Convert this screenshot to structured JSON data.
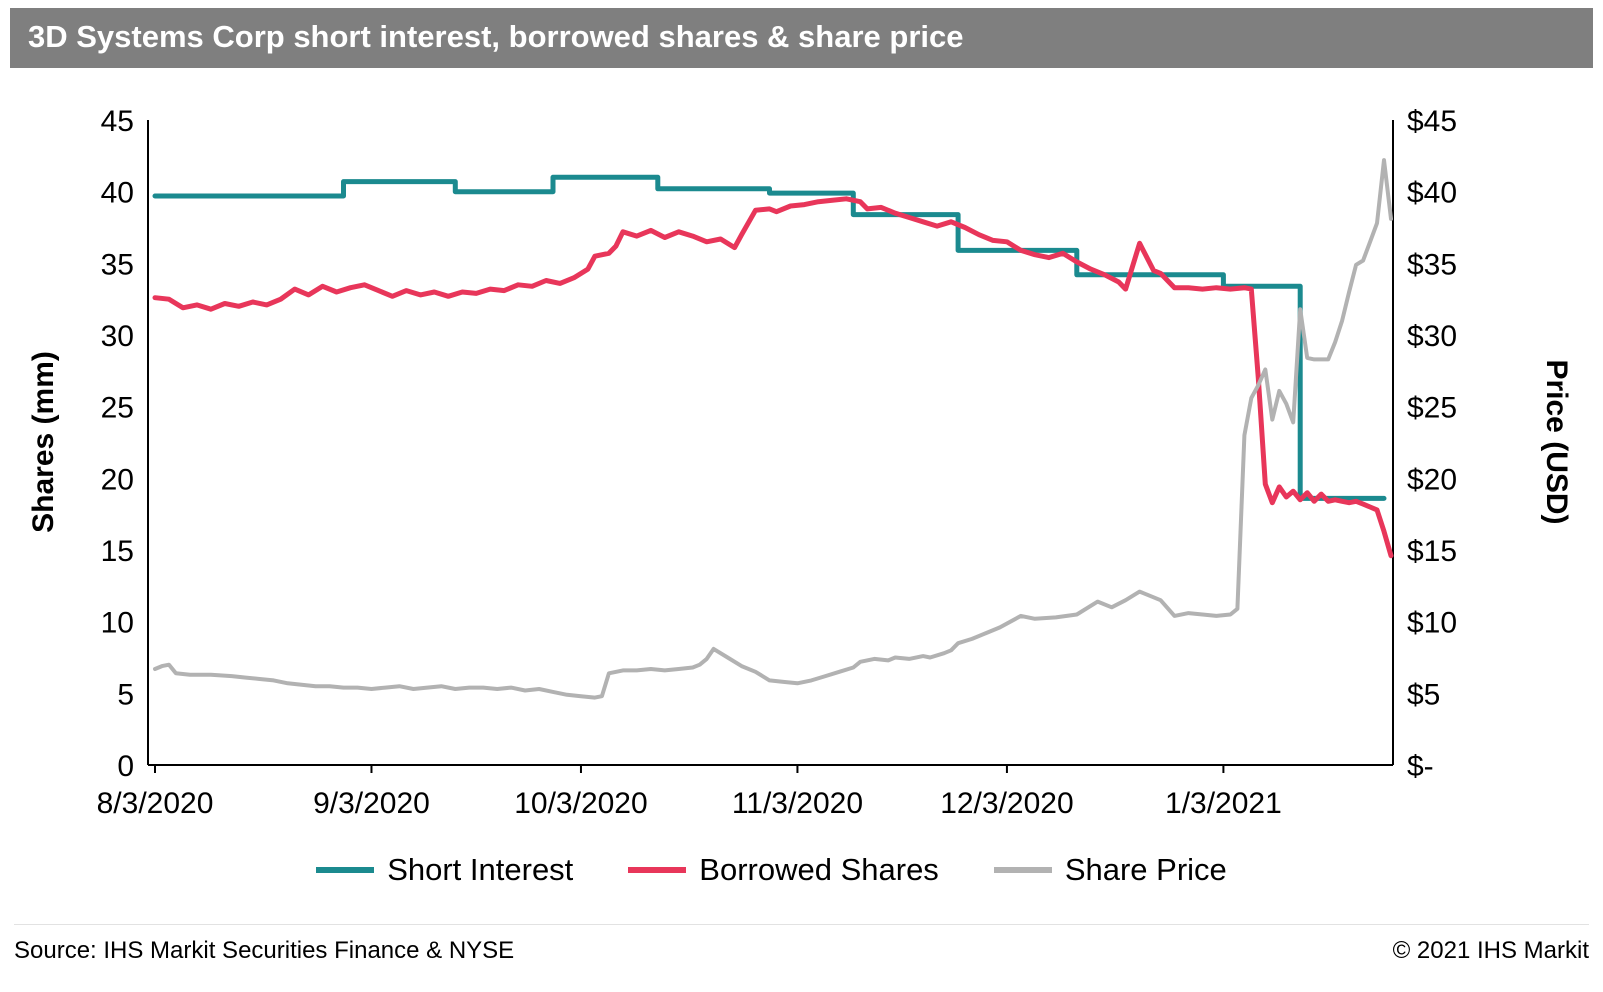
{
  "title": "3D Systems Corp short interest, borrowed shares & share price",
  "footer": {
    "source": "Source: IHS Markit Securities Finance & NYSE",
    "copyright": "© 2021 IHS Markit"
  },
  "colors": {
    "title_bar": "#7F7F7F",
    "axis": "#000000",
    "short_interest": "#1B8A8F",
    "borrowed_shares": "#E8365A",
    "share_price": "#B2B2B2"
  },
  "chart_data": {
    "type": "line",
    "title": "3D Systems Corp short interest, borrowed shares & share price",
    "x_unit": "calendar days since 8/3/2020",
    "x_domain": [
      0,
      177
    ],
    "x_ticks": [
      {
        "day": 0,
        "label": "8/3/2020"
      },
      {
        "day": 31,
        "label": "9/3/2020"
      },
      {
        "day": 61,
        "label": "10/3/2020"
      },
      {
        "day": 92,
        "label": "11/3/2020"
      },
      {
        "day": 122,
        "label": "12/3/2020"
      },
      {
        "day": 153,
        "label": "1/3/2021"
      }
    ],
    "grid": false,
    "legend_position": "bottom",
    "left_axis": {
      "label": "Shares (mm)",
      "min": 0,
      "max": 45,
      "ticks": [
        {
          "value": 0,
          "label": "0"
        },
        {
          "value": 5,
          "label": "5"
        },
        {
          "value": 10,
          "label": "10"
        },
        {
          "value": 15,
          "label": "15"
        },
        {
          "value": 20,
          "label": "20"
        },
        {
          "value": 25,
          "label": "25"
        },
        {
          "value": 30,
          "label": "30"
        },
        {
          "value": 35,
          "label": "35"
        },
        {
          "value": 40,
          "label": "40"
        },
        {
          "value": 45,
          "label": "45"
        }
      ]
    },
    "right_axis": {
      "label": "Price (USD)",
      "min": 0,
      "max": 45,
      "ticks": [
        {
          "value": 0,
          "label": "$-"
        },
        {
          "value": 5,
          "label": "$5"
        },
        {
          "value": 10,
          "label": "$10"
        },
        {
          "value": 15,
          "label": "$15"
        },
        {
          "value": 20,
          "label": "$20"
        },
        {
          "value": 25,
          "label": "$25"
        },
        {
          "value": 30,
          "label": "$30"
        },
        {
          "value": 35,
          "label": "$35"
        },
        {
          "value": 40,
          "label": "$40"
        },
        {
          "value": 45,
          "label": "$45"
        }
      ]
    },
    "series": [
      {
        "name": "Short Interest",
        "axis": "left",
        "color": "#1B8A8F",
        "points": [
          [
            0,
            39.7
          ],
          [
            27,
            39.7
          ],
          [
            27,
            40.7
          ],
          [
            43,
            40.7
          ],
          [
            43,
            40.0
          ],
          [
            57,
            40.0
          ],
          [
            57,
            41.0
          ],
          [
            72,
            41.0
          ],
          [
            72,
            40.2
          ],
          [
            88,
            40.2
          ],
          [
            88,
            39.9
          ],
          [
            100,
            39.9
          ],
          [
            100,
            38.4
          ],
          [
            115,
            38.4
          ],
          [
            115,
            35.9
          ],
          [
            132,
            35.9
          ],
          [
            132,
            34.2
          ],
          [
            153,
            34.2
          ],
          [
            153,
            33.4
          ],
          [
            164,
            33.4
          ],
          [
            164,
            18.6
          ],
          [
            176,
            18.6
          ]
        ]
      },
      {
        "name": "Borrowed Shares",
        "axis": "left",
        "color": "#E8365A",
        "points": [
          [
            0,
            32.6
          ],
          [
            2,
            32.5
          ],
          [
            4,
            31.9
          ],
          [
            6,
            32.1
          ],
          [
            8,
            31.8
          ],
          [
            10,
            32.2
          ],
          [
            12,
            32.0
          ],
          [
            14,
            32.3
          ],
          [
            16,
            32.1
          ],
          [
            18,
            32.5
          ],
          [
            20,
            33.2
          ],
          [
            22,
            32.8
          ],
          [
            24,
            33.4
          ],
          [
            26,
            33.0
          ],
          [
            28,
            33.3
          ],
          [
            30,
            33.5
          ],
          [
            32,
            33.1
          ],
          [
            34,
            32.7
          ],
          [
            36,
            33.1
          ],
          [
            38,
            32.8
          ],
          [
            40,
            33.0
          ],
          [
            42,
            32.7
          ],
          [
            44,
            33.0
          ],
          [
            46,
            32.9
          ],
          [
            48,
            33.2
          ],
          [
            50,
            33.1
          ],
          [
            52,
            33.5
          ],
          [
            54,
            33.4
          ],
          [
            56,
            33.8
          ],
          [
            58,
            33.6
          ],
          [
            60,
            34.0
          ],
          [
            62,
            34.6
          ],
          [
            63,
            35.5
          ],
          [
            65,
            35.7
          ],
          [
            66,
            36.2
          ],
          [
            67,
            37.2
          ],
          [
            69,
            36.9
          ],
          [
            71,
            37.3
          ],
          [
            73,
            36.8
          ],
          [
            75,
            37.2
          ],
          [
            77,
            36.9
          ],
          [
            79,
            36.5
          ],
          [
            81,
            36.7
          ],
          [
            83,
            36.1
          ],
          [
            84,
            37.0
          ],
          [
            86,
            38.7
          ],
          [
            88,
            38.8
          ],
          [
            89,
            38.6
          ],
          [
            91,
            39.0
          ],
          [
            93,
            39.1
          ],
          [
            95,
            39.3
          ],
          [
            97,
            39.4
          ],
          [
            99,
            39.5
          ],
          [
            101,
            39.3
          ],
          [
            102,
            38.8
          ],
          [
            104,
            38.9
          ],
          [
            106,
            38.5
          ],
          [
            108,
            38.2
          ],
          [
            110,
            37.9
          ],
          [
            112,
            37.6
          ],
          [
            114,
            37.9
          ],
          [
            116,
            37.5
          ],
          [
            118,
            37.0
          ],
          [
            120,
            36.6
          ],
          [
            122,
            36.5
          ],
          [
            124,
            35.9
          ],
          [
            126,
            35.6
          ],
          [
            128,
            35.4
          ],
          [
            130,
            35.7
          ],
          [
            132,
            35.1
          ],
          [
            134,
            34.6
          ],
          [
            136,
            34.2
          ],
          [
            138,
            33.7
          ],
          [
            139,
            33.2
          ],
          [
            141,
            36.4
          ],
          [
            143,
            34.5
          ],
          [
            144,
            34.3
          ],
          [
            146,
            33.3
          ],
          [
            148,
            33.3
          ],
          [
            150,
            33.2
          ],
          [
            152,
            33.3
          ],
          [
            154,
            33.2
          ],
          [
            156,
            33.3
          ],
          [
            157,
            33.2
          ],
          [
            158,
            27.0
          ],
          [
            159,
            19.6
          ],
          [
            160,
            18.3
          ],
          [
            161,
            19.4
          ],
          [
            162,
            18.7
          ],
          [
            163,
            19.1
          ],
          [
            164,
            18.5
          ],
          [
            165,
            19.0
          ],
          [
            166,
            18.4
          ],
          [
            167,
            18.9
          ],
          [
            168,
            18.4
          ],
          [
            169,
            18.5
          ],
          [
            170,
            18.4
          ],
          [
            171,
            18.3
          ],
          [
            172,
            18.4
          ],
          [
            173,
            18.2
          ],
          [
            174,
            18.0
          ],
          [
            175,
            17.8
          ],
          [
            176,
            16.3
          ],
          [
            177,
            14.6
          ]
        ]
      },
      {
        "name": "Share Price",
        "axis": "right",
        "color": "#B2B2B2",
        "points": [
          [
            0,
            6.7
          ],
          [
            1,
            6.9
          ],
          [
            2,
            7.0
          ],
          [
            3,
            6.4
          ],
          [
            5,
            6.3
          ],
          [
            8,
            6.3
          ],
          [
            11,
            6.2
          ],
          [
            13,
            6.1
          ],
          [
            15,
            6.0
          ],
          [
            17,
            5.9
          ],
          [
            19,
            5.7
          ],
          [
            21,
            5.6
          ],
          [
            23,
            5.5
          ],
          [
            25,
            5.5
          ],
          [
            27,
            5.4
          ],
          [
            29,
            5.4
          ],
          [
            31,
            5.3
          ],
          [
            33,
            5.4
          ],
          [
            35,
            5.5
          ],
          [
            37,
            5.3
          ],
          [
            39,
            5.4
          ],
          [
            41,
            5.5
          ],
          [
            43,
            5.3
          ],
          [
            45,
            5.4
          ],
          [
            47,
            5.4
          ],
          [
            49,
            5.3
          ],
          [
            51,
            5.4
          ],
          [
            53,
            5.2
          ],
          [
            55,
            5.3
          ],
          [
            57,
            5.1
          ],
          [
            59,
            4.9
          ],
          [
            61,
            4.8
          ],
          [
            63,
            4.7
          ],
          [
            64,
            4.8
          ],
          [
            65,
            6.4
          ],
          [
            67,
            6.6
          ],
          [
            69,
            6.6
          ],
          [
            71,
            6.7
          ],
          [
            73,
            6.6
          ],
          [
            75,
            6.7
          ],
          [
            77,
            6.8
          ],
          [
            78,
            7.0
          ],
          [
            79,
            7.4
          ],
          [
            80,
            8.1
          ],
          [
            82,
            7.5
          ],
          [
            84,
            6.9
          ],
          [
            86,
            6.5
          ],
          [
            88,
            5.9
          ],
          [
            90,
            5.8
          ],
          [
            92,
            5.7
          ],
          [
            94,
            5.9
          ],
          [
            96,
            6.2
          ],
          [
            98,
            6.5
          ],
          [
            100,
            6.8
          ],
          [
            101,
            7.2
          ],
          [
            103,
            7.4
          ],
          [
            105,
            7.3
          ],
          [
            106,
            7.5
          ],
          [
            108,
            7.4
          ],
          [
            110,
            7.6
          ],
          [
            111,
            7.5
          ],
          [
            113,
            7.8
          ],
          [
            114,
            8.0
          ],
          [
            115,
            8.5
          ],
          [
            117,
            8.8
          ],
          [
            119,
            9.2
          ],
          [
            121,
            9.6
          ],
          [
            124,
            10.4
          ],
          [
            126,
            10.2
          ],
          [
            129,
            10.3
          ],
          [
            132,
            10.5
          ],
          [
            135,
            11.4
          ],
          [
            137,
            11.0
          ],
          [
            139,
            11.5
          ],
          [
            141,
            12.1
          ],
          [
            143,
            11.7
          ],
          [
            144,
            11.5
          ],
          [
            146,
            10.4
          ],
          [
            148,
            10.6
          ],
          [
            150,
            10.5
          ],
          [
            152,
            10.4
          ],
          [
            154,
            10.5
          ],
          [
            155,
            10.9
          ],
          [
            156,
            23.0
          ],
          [
            157,
            25.6
          ],
          [
            158,
            26.5
          ],
          [
            159,
            27.6
          ],
          [
            160,
            24.1
          ],
          [
            161,
            26.1
          ],
          [
            162,
            25.2
          ],
          [
            163,
            23.9
          ],
          [
            164,
            31.8
          ],
          [
            165,
            28.4
          ],
          [
            166,
            28.3
          ],
          [
            168,
            28.3
          ],
          [
            169,
            29.5
          ],
          [
            170,
            31.0
          ],
          [
            171,
            33.0
          ],
          [
            172,
            34.9
          ],
          [
            173,
            35.2
          ],
          [
            174,
            36.5
          ],
          [
            175,
            37.8
          ],
          [
            176,
            42.2
          ],
          [
            177,
            38.1
          ]
        ]
      }
    ]
  }
}
